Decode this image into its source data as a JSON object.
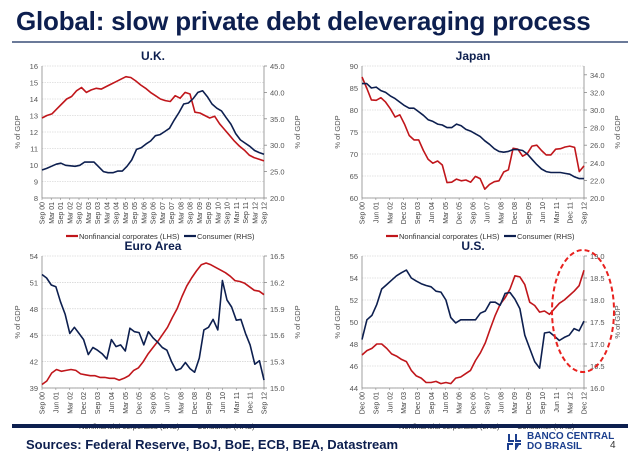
{
  "slide": {
    "title": "Global: slow private debt deleveraging process",
    "sources": "Sources: Federal Reserve, BoJ, BoE, ECB, BEA, Datastream",
    "logo_line1": "BANCO CENTRAL",
    "logo_line2": "DO BRASIL",
    "page_number": "4",
    "colors": {
      "title": "#0d1f4f",
      "red": "#c0161b",
      "navy": "#0d1f4f",
      "axis": "#888888",
      "annotation": "#e8211e"
    }
  },
  "chart_data": [
    {
      "id": "uk",
      "type": "line",
      "title": "U.K.",
      "ylabel_left": "% of GDP",
      "ylabel_right": "% of GDP",
      "ylim_left": [
        8,
        16
      ],
      "yticks_left": [
        "8",
        "9",
        "10",
        "11",
        "12",
        "13",
        "14",
        "15",
        "16"
      ],
      "ylim_right": [
        20,
        45
      ],
      "yticks_right": [
        "20.0",
        "25.0",
        "30.0",
        "35.0",
        "40.0",
        "45.0"
      ],
      "categories": [
        "Sep 00",
        "Mar 01",
        "Sep 01",
        "Mar 02",
        "Sep 02",
        "Mar 03",
        "Sep 03",
        "Mar 04",
        "Sep 04",
        "Mar 05",
        "Sep 05",
        "Mar 06",
        "Sep 06",
        "Mar 07",
        "Sep 07",
        "Mar 08",
        "Sep 08",
        "Mar 09",
        "Sep 09",
        "Mar 10",
        "Sep 10",
        "Mar 11",
        "Sep 11",
        "Mar 12",
        "Sep 12"
      ],
      "grid": true,
      "legend": "bottom",
      "series": [
        {
          "name": "Nonfinancial corporates (LHS)",
          "axis": "left",
          "color": "#c0161b",
          "values": [
            12.85,
            13.0,
            13.1,
            13.4,
            13.7,
            14.0,
            14.15,
            14.5,
            14.7,
            14.4,
            14.55,
            14.65,
            14.6,
            14.75,
            14.9,
            15.05,
            15.2,
            15.35,
            15.3,
            15.1,
            14.85,
            14.65,
            14.4,
            14.2,
            14.0,
            13.9,
            13.85,
            14.2,
            14.05,
            14.4,
            14.3,
            13.2,
            13.15,
            13.0,
            12.85,
            12.95,
            12.5,
            12.15,
            11.8,
            11.45,
            11.15,
            10.9,
            10.6,
            10.45,
            10.35,
            10.25
          ]
        },
        {
          "name": "Consumer (RHS)",
          "axis": "right",
          "color": "#0d1f4f",
          "values": [
            25.3,
            25.6,
            26.0,
            26.4,
            26.6,
            26.2,
            26.1,
            26.0,
            26.2,
            26.8,
            26.8,
            26.8,
            25.9,
            25.0,
            24.8,
            24.8,
            25.1,
            25.1,
            26.0,
            27.2,
            29.2,
            29.5,
            30.2,
            30.8,
            31.8,
            32.0,
            32.6,
            33.2,
            34.8,
            36.2,
            37.8,
            38.0,
            38.8,
            40.0,
            40.3,
            39.2,
            37.8,
            37.0,
            36.5,
            35.2,
            34.0,
            32.2,
            31.0,
            30.4,
            29.8,
            29.0,
            28.6,
            28.3
          ]
        }
      ]
    },
    {
      "id": "japan",
      "type": "line",
      "title": "Japan",
      "ylabel_left": "% of GDP",
      "ylabel_right": "% of GDP",
      "ylim_left": [
        60,
        90
      ],
      "yticks_left": [
        "60",
        "65",
        "70",
        "75",
        "80",
        "85",
        "90"
      ],
      "ylim_right": [
        20,
        35
      ],
      "yticks_right": [
        "20.0",
        "22.0",
        "24.0",
        "26.0",
        "28.0",
        "30.0",
        "32.0",
        "34.0"
      ],
      "categories": [
        "Sep 00",
        "Jun 01",
        "Mar 02",
        "Dec 02",
        "Sep 03",
        "Jun 04",
        "Mar 05",
        "Dec 05",
        "Sep 06",
        "Jun 07",
        "Mar 08",
        "Dec 08",
        "Sep 09",
        "Jun 10",
        "Mar 11",
        "Dec 11",
        "Sep 12"
      ],
      "grid": true,
      "legend": "bottom",
      "series": [
        {
          "name": "Nonfinancial corporates (LHS)",
          "axis": "left",
          "color": "#c0161b",
          "values": [
            87.5,
            85.0,
            82.3,
            82.2,
            82.8,
            81.8,
            80.3,
            78.4,
            78.9,
            76.8,
            74.2,
            73.2,
            73.2,
            70.8,
            68.8,
            67.9,
            68.4,
            67.5,
            63.5,
            63.6,
            64.3,
            63.9,
            64.1,
            63.6,
            64.9,
            64.4,
            62.0,
            63.1,
            63.7,
            63.9,
            65.9,
            66.4,
            71.3,
            71.1,
            69.5,
            70.1,
            71.8,
            72.0,
            70.8,
            69.8,
            69.8,
            71.1,
            71.2,
            71.6,
            71.8,
            71.5,
            66.0,
            67.3
          ]
        },
        {
          "name": "Consumer (RHS)",
          "axis": "right",
          "color": "#0d1f4f",
          "values": [
            33.0,
            33.0,
            32.5,
            32.6,
            32.2,
            32.0,
            31.6,
            31.3,
            30.9,
            30.5,
            30.2,
            30.2,
            29.8,
            29.4,
            28.9,
            28.7,
            28.4,
            28.3,
            28.0,
            28.0,
            28.4,
            28.2,
            27.8,
            27.6,
            27.3,
            27.0,
            26.5,
            26.1,
            25.6,
            25.3,
            25.2,
            25.3,
            25.5,
            25.5,
            25.4,
            25.0,
            24.4,
            23.8,
            23.3,
            23.0,
            22.9,
            22.9,
            22.9,
            22.8,
            22.7,
            22.4,
            22.2,
            22.2
          ]
        }
      ]
    },
    {
      "id": "euro-area",
      "type": "line",
      "title": "Euro Area",
      "ylabel_left": "% of GDP",
      "ylabel_right": "% of GDP",
      "ylim_left": [
        39,
        54
      ],
      "yticks_left": [
        "39",
        "42",
        "45",
        "48",
        "51",
        "54"
      ],
      "ylim_right": [
        15.0,
        16.5
      ],
      "yticks_right": [
        "15.0",
        "15.3",
        "15.6",
        "15.9",
        "16.2",
        "16.5"
      ],
      "categories": [
        "Sep 00",
        "Jun 01",
        "Mar 02",
        "Dec 02",
        "Sep 03",
        "Jun 04",
        "Mar 05",
        "Dec 05",
        "Sep 06",
        "Jun 07",
        "Mar 08",
        "Dec 08",
        "Sep 09",
        "Jun 10",
        "Mar 11",
        "Dec 11",
        "Sep 12"
      ],
      "grid": true,
      "legend": "bottom",
      "series": [
        {
          "name": "Nonfinancial corporates (LHS)",
          "axis": "left",
          "color": "#c0161b",
          "values": [
            39.4,
            39.8,
            40.7,
            41.1,
            40.9,
            41.0,
            41.1,
            41.0,
            40.6,
            40.5,
            40.4,
            40.4,
            40.2,
            40.2,
            40.1,
            40.1,
            39.9,
            40.1,
            40.4,
            41.0,
            41.3,
            42.0,
            42.9,
            43.6,
            44.3,
            45.1,
            45.9,
            47.0,
            48.0,
            49.4,
            50.6,
            51.5,
            52.3,
            53.0,
            53.2,
            53.0,
            52.7,
            52.4,
            52.1,
            51.7,
            51.2,
            51.1,
            50.9,
            50.5,
            50.1,
            50.0,
            49.6
          ]
        },
        {
          "name": "Consumer (RHS)",
          "axis": "right",
          "color": "#0d1f4f",
          "values": [
            16.29,
            16.25,
            16.17,
            16.15,
            15.98,
            15.84,
            15.62,
            15.69,
            15.62,
            15.55,
            15.38,
            15.46,
            15.43,
            15.39,
            15.33,
            15.55,
            15.47,
            15.49,
            15.42,
            15.68,
            15.64,
            15.63,
            15.49,
            15.64,
            15.57,
            15.52,
            15.46,
            15.43,
            15.3,
            15.2,
            15.22,
            15.29,
            15.22,
            15.18,
            15.34,
            15.66,
            15.69,
            15.78,
            15.66,
            16.22,
            16.0,
            15.92,
            15.77,
            15.78,
            15.62,
            15.49,
            15.27,
            15.31,
            15.09
          ]
        }
      ]
    },
    {
      "id": "us",
      "type": "line",
      "title": "U.S.",
      "ylabel_left": "% of GDP",
      "ylabel_right": "% of GDP",
      "ylim_left": [
        44,
        56
      ],
      "yticks_left": [
        "44",
        "46",
        "48",
        "50",
        "52",
        "54",
        "56"
      ],
      "ylim_right": [
        16.0,
        19.0
      ],
      "yticks_right": [
        "16.0",
        "16.5",
        "17.0",
        "17.5",
        "18.0",
        "18.5",
        "19.0"
      ],
      "categories": [
        "Dec 00",
        "Sep 01",
        "Jun 02",
        "Mar 03",
        "Dec 03",
        "Sep 04",
        "Jun 05",
        "Mar 06",
        "Dec 06",
        "Sep 07",
        "Jun 08",
        "Mar 09",
        "Dec 09",
        "Sep 10",
        "Jun 11",
        "Mar 12",
        "Dec 12"
      ],
      "grid": true,
      "legend": "bottom",
      "annotation": "dashed ellipse highlighting 2011-2012",
      "series": [
        {
          "name": "Nonfinancial corporates (LHS)",
          "axis": "left",
          "color": "#c0161b",
          "values": [
            47.0,
            47.4,
            47.6,
            48.0,
            48.0,
            47.6,
            47.1,
            46.9,
            46.6,
            46.4,
            45.6,
            45.1,
            44.9,
            44.5,
            44.5,
            44.6,
            44.4,
            44.5,
            44.4,
            44.9,
            45.0,
            45.3,
            45.6,
            46.5,
            47.2,
            48.1,
            49.4,
            50.6,
            51.6,
            52.2,
            53.0,
            54.2,
            54.1,
            53.4,
            51.8,
            51.5,
            50.9,
            51.0,
            50.7,
            51.2,
            51.7,
            52.0,
            52.4,
            52.8,
            53.3,
            54.7
          ]
        },
        {
          "name": "Consumer (RHS)",
          "axis": "right",
          "color": "#0d1f4f",
          "values": [
            17.1,
            17.55,
            17.65,
            17.9,
            18.25,
            18.35,
            18.45,
            18.55,
            18.62,
            18.68,
            18.5,
            18.43,
            18.37,
            18.33,
            18.3,
            18.2,
            18.18,
            18.0,
            17.6,
            17.48,
            17.55,
            17.55,
            17.55,
            17.55,
            17.7,
            17.75,
            17.95,
            17.95,
            17.88,
            18.15,
            18.17,
            18.02,
            17.8,
            17.2,
            16.9,
            16.6,
            16.45,
            17.25,
            17.27,
            17.18,
            17.08,
            17.15,
            17.2,
            17.35,
            17.3,
            17.52
          ]
        }
      ]
    }
  ]
}
